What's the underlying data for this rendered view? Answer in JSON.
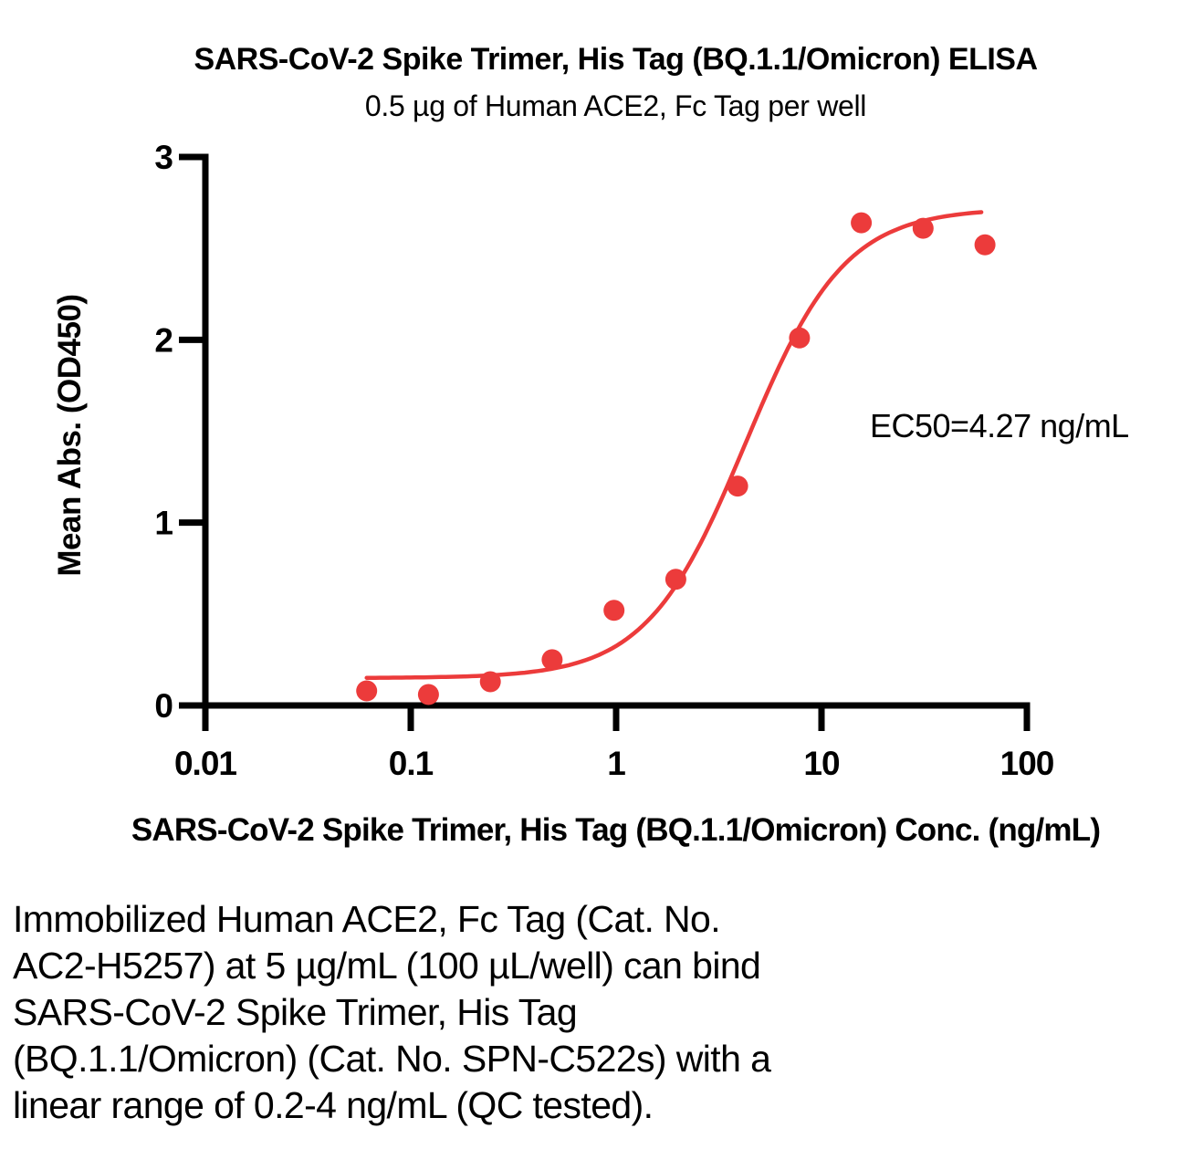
{
  "header": {
    "title": "SARS-CoV-2 Spike Trimer, His Tag (BQ.1.1/Omicron) ELISA",
    "subtitle": "0.5 µg of Human ACE2, Fc Tag per well"
  },
  "annotation": {
    "ec50": "EC50=4.27 ng/mL"
  },
  "chart_data": {
    "type": "scatter",
    "title": "SARS-CoV-2 Spike Trimer, His Tag (BQ.1.1/Omicron) ELISA",
    "subtitle": "0.5 µg of Human ACE2, Fc Tag per well",
    "xlabel": "SARS-CoV-2 Spike Trimer, His Tag (BQ.1.1/Omicron) Conc. (ng/mL)",
    "ylabel": "Mean Abs. (OD450)",
    "x_scale": "log10",
    "xlim": [
      0.01,
      100
    ],
    "ylim": [
      0,
      3
    ],
    "x_ticks": [
      0.01,
      0.1,
      1,
      10,
      100
    ],
    "x_tick_labels": [
      "0.01",
      "0.1",
      "1",
      "10",
      "100"
    ],
    "y_ticks": [
      0,
      1,
      2,
      3
    ],
    "y_tick_labels": [
      "0",
      "1",
      "2",
      "3"
    ],
    "grid": false,
    "legend": false,
    "annotation": "EC50=4.27 ng/mL",
    "series": [
      {
        "name": "SARS-CoV-2 Spike Trimer, His Tag (BQ.1.1/Omicron)",
        "marker": "circle",
        "marker_color": "#EC3B3B",
        "line_color": "#EC3B3B",
        "x": [
          0.061,
          0.122,
          0.244,
          0.488,
          0.977,
          1.953,
          3.906,
          7.813,
          15.625,
          31.25,
          62.5
        ],
        "y": [
          0.08,
          0.06,
          0.13,
          0.25,
          0.52,
          0.69,
          1.2,
          2.01,
          2.64,
          2.61,
          2.52
        ]
      }
    ],
    "fit_curve": {
      "model": "4PL",
      "bottom": 0.15,
      "top": 2.72,
      "ec50": 4.27,
      "hill": 1.8,
      "x_start": 0.061,
      "x_end": 60
    }
  },
  "description": {
    "lines": [
      "Immobilized Human ACE2, Fc Tag (Cat. No.",
      "AC2-H5257) at 5 µg/mL (100 µL/well) can bind",
      "SARS-CoV-2 Spike Trimer, His Tag",
      "(BQ.1.1/Omicron) (Cat. No. SPN-C522s) with a",
      "linear range of 0.2-4 ng/mL (QC tested)."
    ]
  },
  "colors": {
    "accent_red": "#EC3B3B",
    "axis_black": "#000000",
    "background": "#FFFFFF"
  }
}
